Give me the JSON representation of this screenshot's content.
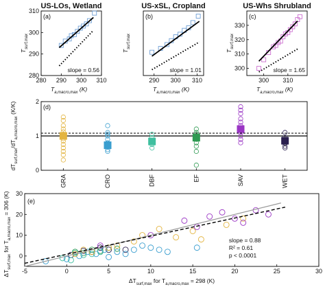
{
  "chart_data": [
    {
      "id": "a",
      "type": "scatter",
      "title": "US-LOs, Wetland",
      "panel_label": "(a)",
      "xlabel": "T_a,macro,max",
      "xlabel_unit": "(K)",
      "ylabel": "T_surf,max",
      "xlim": [
        280,
        310
      ],
      "ylim": [
        280,
        310
      ],
      "xticks": [
        280,
        290,
        300,
        310
      ],
      "yticks": [
        280,
        290,
        300,
        310
      ],
      "points": {
        "x": [
          290,
          292,
          294,
          295,
          296.5,
          298,
          299.5,
          301,
          302.5,
          304,
          306.5
        ],
        "y": [
          294,
          296,
          297,
          298.5,
          299,
          300.5,
          302,
          303,
          304,
          305.5,
          309
        ]
      },
      "fit_line": {
        "x": [
          289,
          306
        ],
        "y": [
          293,
          307
        ]
      },
      "one_to_one": {
        "x": [
          289,
          306
        ],
        "y": [
          284.5,
          301
        ]
      },
      "annotation": "slope = 0.56",
      "marker_color": "#6f9fd6"
    },
    {
      "id": "b",
      "type": "scatter",
      "title": "US-xSL, Cropland",
      "panel_label": "(b)",
      "xlabel": "T_a,macro,max",
      "xlabel_unit": "(K)",
      "ylabel": "T_surf,max",
      "xlim": [
        285,
        313
      ],
      "ylim": [
        285,
        335
      ],
      "xticks": [
        290,
        300,
        310
      ],
      "yticks": [],
      "points": {
        "x": [
          289,
          293,
          296,
          298,
          300,
          302,
          304,
          306,
          308,
          310.5
        ],
        "y": [
          303,
          306,
          309,
          312,
          315,
          317,
          320,
          322,
          326,
          331
        ]
      },
      "fit_line": {
        "x": [
          289,
          311
        ],
        "y": [
          300,
          327
        ]
      },
      "one_to_one": {
        "x": [
          289,
          311
        ],
        "y": [
          289.5,
          311
        ]
      },
      "annotation": "slope = 1.01",
      "marker_color": "#6f9fd6"
    },
    {
      "id": "c",
      "type": "scatter",
      "title": "US-Whs Shrubland",
      "panel_label": "(c)",
      "xlabel": "T_a,macro,max",
      "xlabel_unit": "(K)",
      "ylabel": "T_surf,max",
      "xlim": [
        293,
        318
      ],
      "ylim": [
        295,
        340
      ],
      "xticks": [
        300,
        310
      ],
      "yticks": [
        300,
        310,
        320,
        330
      ],
      "points": {
        "x": [
          298,
          300,
          302,
          304,
          305,
          306,
          307,
          308,
          309,
          310,
          311,
          312,
          313,
          314,
          315
        ],
        "y": [
          300,
          306,
          311,
          315,
          316,
          318,
          319,
          322,
          324,
          325,
          327,
          329,
          331,
          334,
          336
        ]
      },
      "fit_line": {
        "x": [
          298,
          314
        ],
        "y": [
          305,
          333
        ]
      },
      "one_to_one": {
        "x": [
          298,
          314
        ],
        "y": [
          297.5,
          313.5
        ]
      },
      "annotation": "slope = 1.65",
      "marker_color": "#cc6fd0"
    },
    {
      "id": "d",
      "type": "scatter",
      "panel_label": "(d)",
      "ylabel": "dT_surf,max/dT_a,macro,max (K/K)",
      "categories": [
        "GRA",
        "CRO",
        "DBF",
        "EF",
        "SAV",
        "WET"
      ],
      "ylim": [
        0,
        2
      ],
      "yticks": [
        0,
        1,
        2
      ],
      "reference_lines": [
        1.0,
        1.08
      ],
      "colors": [
        "#e3b43f",
        "#3a9ecf",
        "#3fbf9f",
        "#2f9a52",
        "#9a35c4",
        "#2a1f4f"
      ],
      "means": [
        1.0,
        0.73,
        0.84,
        0.95,
        1.2,
        0.86
      ],
      "errors": [
        0.1,
        0.07,
        0.07,
        0.1,
        0.1,
        0.15
      ],
      "individual_values": [
        [
          0.3,
          0.45,
          0.55,
          0.65,
          0.75,
          0.85,
          0.92,
          0.98,
          1.05,
          1.12,
          1.2,
          1.3,
          1.45,
          1.55
        ],
        [
          0.55,
          0.6,
          0.7,
          0.8,
          0.9,
          1.0,
          1.05,
          1.1,
          1.3
        ],
        [
          0.65,
          0.75,
          0.85,
          0.95,
          1.05
        ],
        [
          0.15,
          0.55,
          0.7,
          0.8,
          0.9,
          1.0,
          1.05,
          1.1,
          1.2
        ],
        [
          0.8,
          0.9,
          1.0,
          1.1,
          1.2,
          1.3,
          1.4,
          1.5,
          1.65,
          1.75,
          1.85
        ],
        [
          0.65,
          0.7,
          0.78,
          0.88,
          0.95,
          1.1
        ]
      ]
    },
    {
      "id": "e",
      "type": "scatter",
      "panel_label": "(e)",
      "xlabel": "ΔT_surf,max for T_a,macro,max = 298 (K)",
      "ylabel": "ΔT_surf,max for T_a,macro,max = 306 (K)",
      "xlim": [
        -5,
        30
      ],
      "ylim": [
        -5,
        30
      ],
      "xticks": [
        -5,
        0,
        5,
        10,
        15,
        20,
        25,
        30
      ],
      "yticks": [
        0,
        10,
        20,
        30
      ],
      "fit_line": {
        "x": [
          -5,
          26
        ],
        "y": [
          -3.5,
          23.5
        ]
      },
      "one_to_one": {
        "x": [
          -5,
          25.5
        ],
        "y": [
          -5,
          25.5
        ]
      },
      "stats": [
        "slope = 0.88",
        "R² = 0.61",
        "p < 0.0001"
      ],
      "groups": [
        {
          "color": "#2a1f4f",
          "x": [
            0.5,
            2,
            3,
            4,
            5,
            7
          ],
          "y": [
            0.5,
            2.5,
            2,
            4,
            3,
            3
          ]
        },
        {
          "color": "#2f9a52",
          "x": [
            1,
            2,
            3,
            4,
            5,
            6
          ],
          "y": [
            2,
            1.5,
            3,
            2.5,
            4,
            3.5
          ]
        },
        {
          "color": "#3fbf9f",
          "x": [
            -0.5,
            0.5,
            1,
            2,
            3,
            4
          ],
          "y": [
            -1,
            -2,
            1.5,
            0.5,
            1,
            2
          ]
        },
        {
          "color": "#3a9ecf",
          "x": [
            -2.5,
            0,
            1.5,
            2.5,
            3.5,
            4.5,
            5,
            6,
            7,
            8,
            9,
            10,
            11,
            12,
            15.5
          ],
          "y": [
            -2.5,
            -1.5,
            0,
            2,
            1,
            3,
            -0.5,
            2,
            1,
            3,
            5,
            4,
            3,
            2,
            4
          ]
        },
        {
          "color": "#e3b43f",
          "x": [
            1,
            2,
            3,
            5,
            6,
            8,
            9,
            11,
            13,
            15,
            16,
            19,
            21
          ],
          "y": [
            1,
            3,
            2,
            4,
            5,
            7,
            10,
            13,
            9,
            12,
            8,
            15,
            18
          ]
        },
        {
          "color": "#9a35c4",
          "x": [
            4,
            10,
            14,
            15.5,
            17,
            18.5,
            20,
            21,
            22.5,
            24
          ],
          "y": [
            5,
            10,
            17,
            14,
            19,
            21,
            18,
            16,
            22,
            20
          ]
        }
      ]
    }
  ]
}
